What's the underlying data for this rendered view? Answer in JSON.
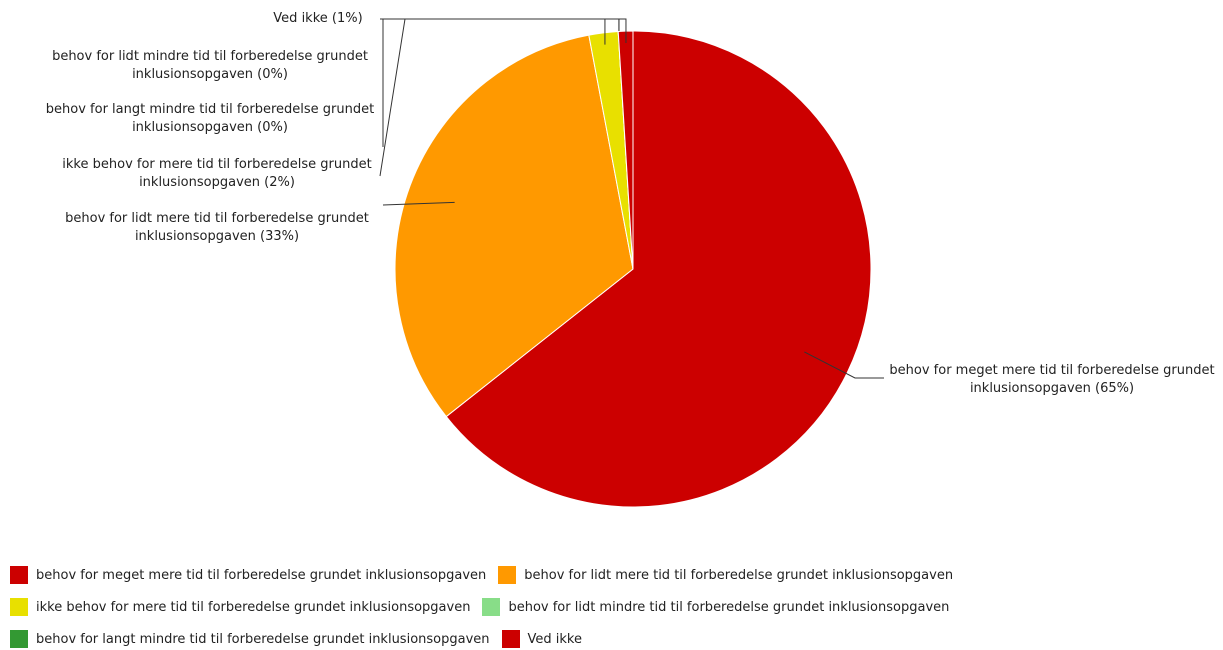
{
  "chart_data": {
    "type": "pie",
    "categories": [
      "behov for meget mere tid til forberedelse grundet inklusionsopgaven",
      "behov for lidt mere tid til forberedelse grundet inklusionsopgaven",
      "ikke behov for mere tid til forberedelse grundet inklusionsopgaven",
      "behov for lidt mindre tid til forberedelse grundet inklusionsopgaven",
      "behov for langt mindre tid til forberedelse grundet inklusionsopgaven",
      "Ved ikke"
    ],
    "values": [
      65,
      33,
      2,
      0,
      0,
      1
    ],
    "value_labels": [
      "(65%)",
      "(33%)",
      "(2%)",
      "(0%)",
      "(0%)",
      "(1%)"
    ],
    "colors": [
      "#cc0000",
      "#ff9900",
      "#e8e000",
      "#88dd88",
      "#339933",
      "#cc0000"
    ],
    "legend": "bottom"
  }
}
